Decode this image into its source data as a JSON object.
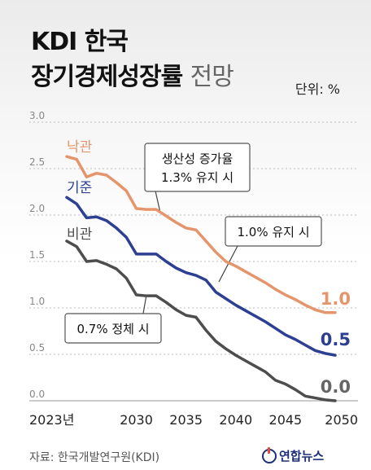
{
  "header": {
    "title_line1": "KDI 한국",
    "title_line2_bold": "장기경제성장률",
    "title_line2_light": "전망",
    "unit": "단위: %"
  },
  "source": "자료: 한국개발연구원(KDI)",
  "logo_text": "연합뉴스",
  "colors": {
    "optimistic": "#e5956b",
    "baseline": "#2d3f93",
    "pessimistic": "#4d4d4d",
    "grid": "#bdbdbd",
    "end_label_pessimistic": "#666666"
  },
  "chart_data": {
    "type": "line",
    "ylim": [
      0,
      3.0
    ],
    "xlim": [
      2023,
      2050
    ],
    "y_ticks": [
      "0.0",
      "0.5",
      "1.0",
      "1.5",
      "2.0",
      "2.5",
      "3.0"
    ],
    "x_ticks": [
      {
        "x": 2023,
        "label": "2023년"
      },
      {
        "x": 2030,
        "label": "2030"
      },
      {
        "x": 2035,
        "label": "2035"
      },
      {
        "x": 2040,
        "label": "2040"
      },
      {
        "x": 2045,
        "label": "2045"
      },
      {
        "x": 2050,
        "label": "2050"
      }
    ],
    "series": [
      {
        "name": "낙관",
        "key": "optimistic",
        "end_label": "1.0",
        "x": [
          2023,
          2024,
          2025,
          2026,
          2027,
          2028,
          2029,
          2030,
          2031,
          2032,
          2033,
          2034,
          2035,
          2036,
          2037,
          2038,
          2039,
          2040,
          2041,
          2042,
          2043,
          2044,
          2045,
          2046,
          2047,
          2048,
          2049,
          2050
        ],
        "y": [
          2.63,
          2.6,
          2.41,
          2.45,
          2.43,
          2.35,
          2.26,
          2.07,
          2.06,
          2.06,
          1.99,
          1.92,
          1.86,
          1.84,
          1.72,
          1.6,
          1.5,
          1.45,
          1.39,
          1.33,
          1.27,
          1.2,
          1.14,
          1.09,
          1.03,
          0.98,
          0.95,
          0.95
        ]
      },
      {
        "name": "기준",
        "key": "baseline",
        "end_label": "0.5",
        "x": [
          2023,
          2024,
          2025,
          2026,
          2027,
          2028,
          2029,
          2030,
          2031,
          2032,
          2033,
          2034,
          2035,
          2036,
          2037,
          2038,
          2039,
          2040,
          2041,
          2042,
          2043,
          2044,
          2045,
          2046,
          2047,
          2048,
          2049,
          2050
        ],
        "y": [
          2.19,
          2.12,
          1.97,
          1.98,
          1.94,
          1.86,
          1.76,
          1.58,
          1.58,
          1.58,
          1.5,
          1.43,
          1.38,
          1.35,
          1.3,
          1.17,
          1.1,
          1.03,
          0.97,
          0.91,
          0.85,
          0.78,
          0.71,
          0.66,
          0.6,
          0.54,
          0.51,
          0.49
        ]
      },
      {
        "name": "비관",
        "key": "pessimistic",
        "end_label": "0.0",
        "x": [
          2023,
          2024,
          2025,
          2026,
          2027,
          2028,
          2029,
          2030,
          2031,
          2032,
          2033,
          2034,
          2035,
          2036,
          2037,
          2038,
          2039,
          2040,
          2041,
          2042,
          2043,
          2044,
          2045,
          2046,
          2047,
          2048,
          2049,
          2050
        ],
        "y": [
          1.72,
          1.66,
          1.5,
          1.51,
          1.47,
          1.42,
          1.32,
          1.14,
          1.13,
          1.13,
          1.06,
          0.98,
          0.92,
          0.9,
          0.76,
          0.64,
          0.56,
          0.49,
          0.43,
          0.37,
          0.31,
          0.22,
          0.18,
          0.12,
          0.05,
          0.03,
          0.01,
          0.0
        ]
      }
    ],
    "annotations": [
      {
        "text_line1": "생산성 증가율",
        "text_line2": "1.3% 유지 시",
        "x": 2032,
        "y": 2.06
      },
      {
        "text_line1": "1.0% 유지 시",
        "x": 2039,
        "y": 1.5
      },
      {
        "text_line1": "0.7% 정체 시",
        "x": 2033,
        "y": 1.0
      }
    ]
  }
}
